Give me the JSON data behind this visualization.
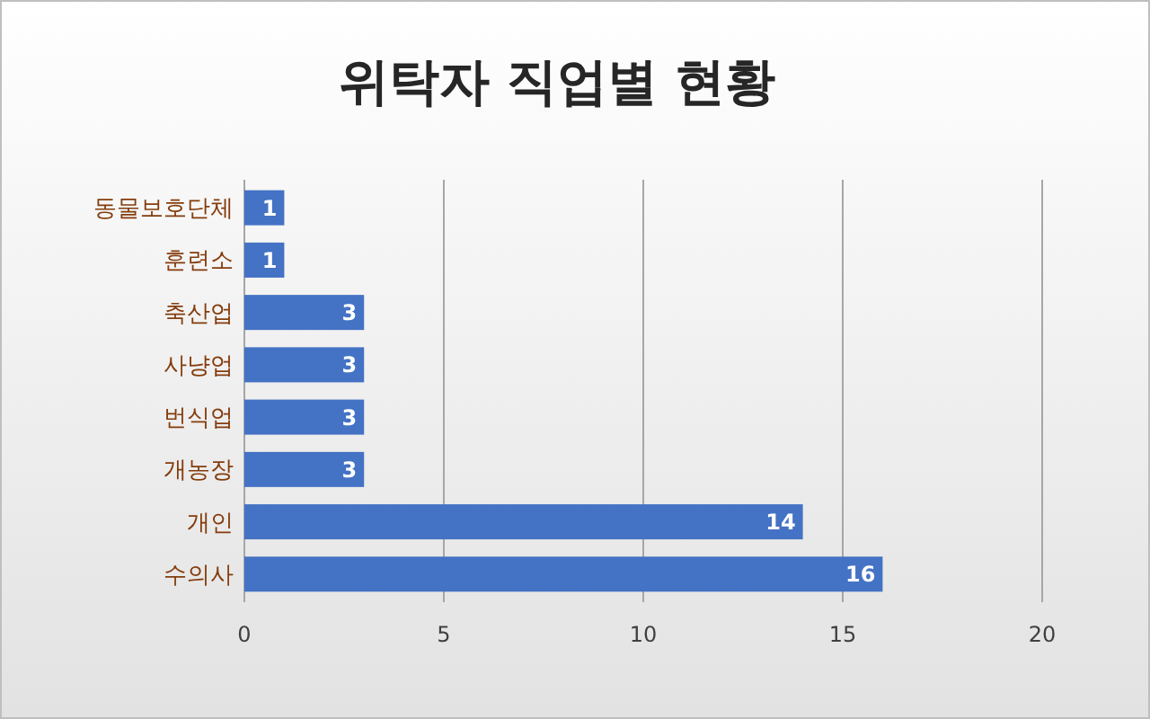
{
  "chart_data": {
    "type": "bar",
    "orientation": "horizontal",
    "title": "위탁자 직업별 현황",
    "categories": [
      "동물보호단체",
      "훈련소",
      "축산업",
      "사냥업",
      "번식업",
      "개농장",
      "개인",
      "수의사"
    ],
    "values": [
      1,
      1,
      3,
      3,
      3,
      3,
      14,
      16
    ],
    "color": "#4472c4",
    "xlim": [
      0,
      20
    ],
    "xticks": [
      0,
      5,
      10,
      15,
      20
    ],
    "grid": "x",
    "data_labels": true
  }
}
